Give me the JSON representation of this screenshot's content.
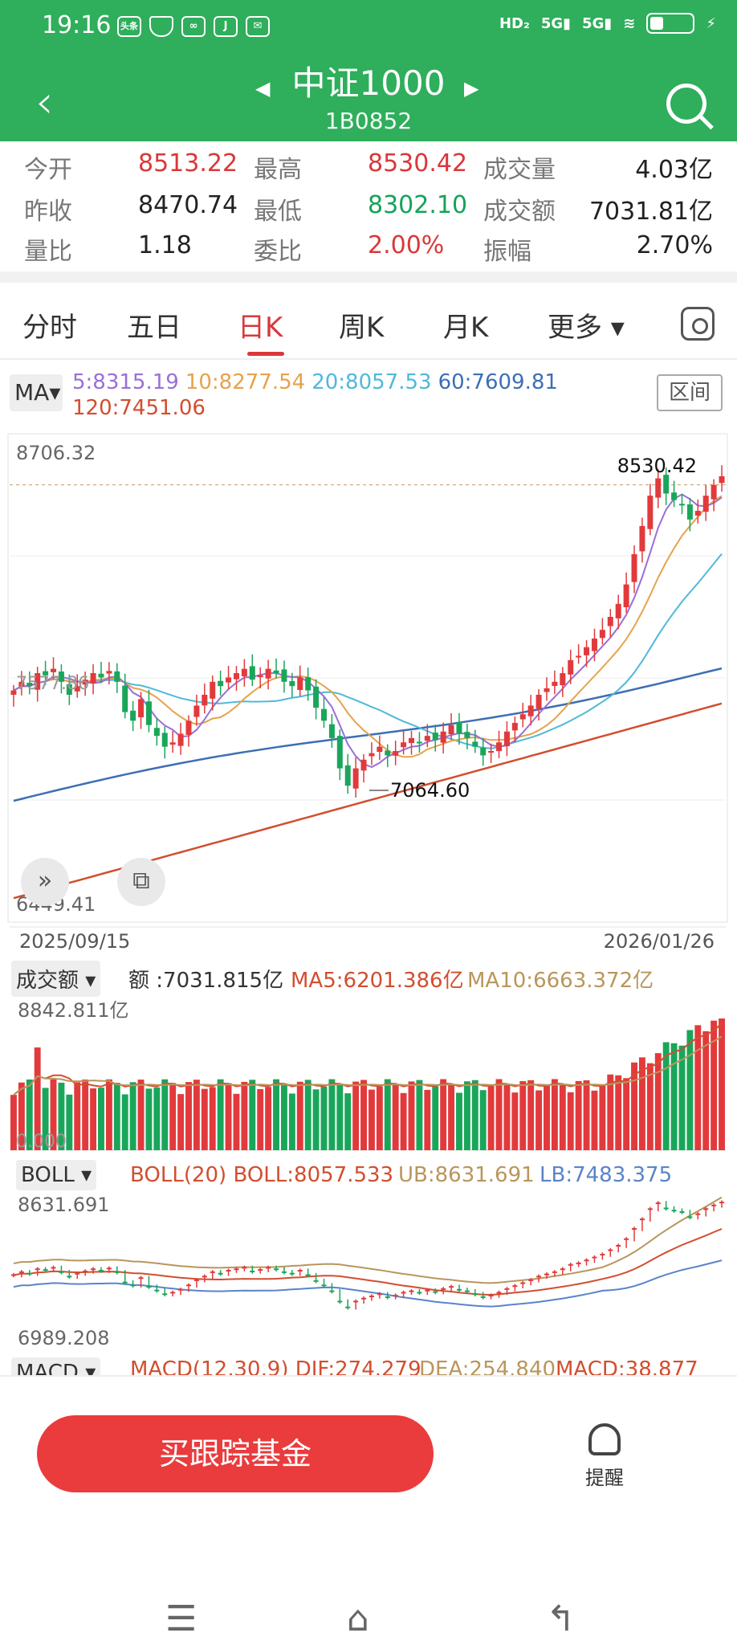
{
  "status_bar": {
    "time": "19:16",
    "app_icons": [
      "头条",
      "shield-icon",
      "link-icon",
      "J",
      "mail-icon"
    ],
    "network": [
      "HD2",
      "5G",
      "5G"
    ],
    "battery": "battery-icon"
  },
  "header": {
    "title": "中证1000",
    "code": "1B0852",
    "back_icon": "back-icon",
    "search_icon": "search-icon",
    "prev_icon": "triangle-left-icon",
    "next_icon": "triangle-right-icon"
  },
  "quote": [
    {
      "label": "今开",
      "value": "8513.22",
      "color": "red"
    },
    {
      "label": "最高",
      "value": "8530.42",
      "color": "red"
    },
    {
      "label": "成交量",
      "value": "4.03亿",
      "color": "black"
    },
    {
      "label": "昨收",
      "value": "8470.74",
      "color": "black"
    },
    {
      "label": "最低",
      "value": "8302.10",
      "color": "green"
    },
    {
      "label": "成交额",
      "value": "7031.81亿",
      "color": "black"
    },
    {
      "label": "量比",
      "value": "1.18",
      "color": "black"
    },
    {
      "label": "委比",
      "value": "2.00%",
      "color": "red"
    },
    {
      "label": "振幅",
      "value": "2.70%",
      "color": "black"
    }
  ],
  "tabs": {
    "items": [
      "分时",
      "五日",
      "日K",
      "周K",
      "月K",
      "更多"
    ],
    "active": "日K",
    "more_caret": "▾"
  },
  "ma": {
    "selector": "MA▾",
    "range_button": "区间",
    "values": [
      {
        "text": "5:8315.19",
        "color": "#9b6fd6"
      },
      {
        "text": "10:8277.54",
        "color": "#e7a24b"
      },
      {
        "text": "20:8057.53",
        "color": "#4fb9d9"
      },
      {
        "text": "60:7609.81",
        "color": "#3c6fb4"
      },
      {
        "text": "120:7451.06",
        "color": "#d24e2f"
      }
    ]
  },
  "main_chart": {
    "top_price": "8706.32",
    "bottom_price": "6449.41",
    "high_label": "8530.42",
    "low_label": "7064.60",
    "left_mark": "7577.86",
    "start_date": "2025/09/15",
    "end_date": "2026/01/26",
    "controls": [
      ">>",
      "□"
    ]
  },
  "volume": {
    "selector": "成交额",
    "amount": "额 :7031.815亿",
    "ma5": "MA5:6201.386亿",
    "ma10": "MA10:6663.372亿",
    "top": "8842.811亿",
    "zero": "0.000"
  },
  "boll": {
    "selector": "BOLL",
    "params": "BOLL(20) BOLL:8057.533",
    "ub": "UB:8631.691",
    "lb": "LB:7483.375",
    "top": "8631.691",
    "bottom": "6989.208"
  },
  "macd": {
    "selector": "MACD",
    "text": "MACD(12,30,9) DIF:274.279",
    "dea": "DEA:254.840",
    "macd": "MACD:38.877"
  },
  "footer": {
    "buy_button": "买跟踪基金",
    "remind": "提醒",
    "nav": [
      "menu-icon",
      "home-icon",
      "back-nav-icon"
    ]
  },
  "chart_data": {
    "type": "candlestick",
    "title": "中证1000",
    "x_range": [
      "2025/09/15",
      "2026/01/26"
    ],
    "y_range": [
      6449.41,
      8706.32
    ],
    "close": [
      7520,
      7560,
      7540,
      7600,
      7590,
      7620,
      7560,
      7500,
      7540,
      7570,
      7600,
      7580,
      7610,
      7560,
      7420,
      7380,
      7480,
      7360,
      7310,
      7260,
      7280,
      7320,
      7380,
      7450,
      7500,
      7560,
      7540,
      7580,
      7600,
      7620,
      7570,
      7590,
      7620,
      7600,
      7560,
      7540,
      7580,
      7520,
      7440,
      7380,
      7300,
      7160,
      7080,
      7160,
      7200,
      7230,
      7260,
      7220,
      7240,
      7280,
      7300,
      7280,
      7310,
      7290,
      7330,
      7360,
      7320,
      7300,
      7260,
      7220,
      7240,
      7280,
      7330,
      7370,
      7410,
      7450,
      7500,
      7530,
      7560,
      7600,
      7660,
      7680,
      7720,
      7760,
      7800,
      7860,
      7920,
      8010,
      8150,
      8280,
      8420,
      8500,
      8430,
      8400,
      8380,
      8310,
      8350,
      8420,
      8470,
      8510
    ],
    "ma_lines": [
      "MA5",
      "MA10",
      "MA20",
      "MA60",
      "MA120"
    ]
  }
}
